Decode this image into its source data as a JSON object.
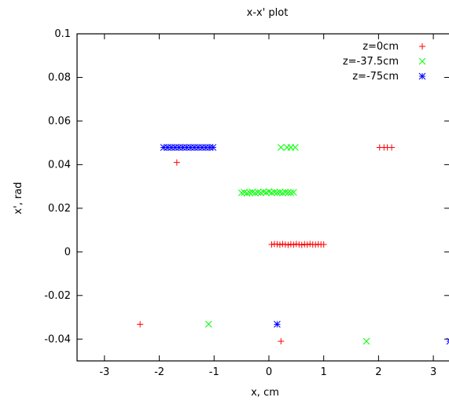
{
  "chart_data": {
    "type": "scatter",
    "title": "x-x' plot",
    "xlabel": "x, cm",
    "ylabel": "x', rad",
    "xlim": [
      -3.5,
      3.3
    ],
    "ylim": [
      -0.05,
      0.1
    ],
    "x_ticks": [
      -3,
      -2,
      -1,
      0,
      1,
      2,
      3
    ],
    "x_tick_labels": [
      "-3",
      "-2",
      "-1",
      "0",
      "1",
      "2",
      "3"
    ],
    "y_ticks": [
      -0.04,
      -0.02,
      0,
      0.02,
      0.04,
      0.06,
      0.08,
      0.1
    ],
    "y_tick_labels": [
      "-0.04",
      "-0.02",
      "0",
      "0.02",
      "0.04",
      "0.06",
      "0.08",
      "0.1"
    ],
    "grid": false,
    "legend_position": "top-right",
    "series": [
      {
        "name": "z=0cm",
        "color": "#ff0000",
        "marker": "plus",
        "x": [
          0.05,
          0.1,
          0.15,
          0.2,
          0.25,
          0.3,
          0.35,
          0.4,
          0.45,
          0.5,
          0.55,
          0.6,
          0.65,
          0.7,
          0.75,
          0.8,
          0.85,
          0.9,
          0.95,
          1.0,
          -1.68,
          -2.35,
          0.22,
          2.02,
          2.1,
          2.16,
          2.24
        ],
        "y": [
          0.0034,
          0.0036,
          0.0035,
          0.0033,
          0.0036,
          0.0034,
          0.0032,
          0.0035,
          0.0033,
          0.0036,
          0.0034,
          0.0032,
          0.0035,
          0.0033,
          0.0036,
          0.0034,
          0.0033,
          0.0035,
          0.0034,
          0.0034,
          0.041,
          -0.0332,
          -0.041,
          0.0479,
          0.0479,
          0.0479,
          0.0479
        ]
      },
      {
        "name": "z=-37.5cm",
        "color": "#00ff00",
        "marker": "x",
        "x": [
          -0.5,
          -0.45,
          -0.4,
          -0.35,
          -0.3,
          -0.25,
          -0.2,
          -0.15,
          -0.1,
          -0.05,
          0.0,
          0.05,
          0.1,
          0.15,
          0.2,
          0.25,
          0.3,
          0.35,
          0.4,
          0.45,
          -1.1,
          1.78,
          0.22,
          0.33,
          0.4,
          0.48
        ],
        "y": [
          0.0271,
          0.0273,
          0.0269,
          0.0272,
          0.0274,
          0.027,
          0.0273,
          0.0271,
          0.0275,
          0.0272,
          0.0276,
          0.0271,
          0.0274,
          0.0272,
          0.0273,
          0.027,
          0.0274,
          0.0272,
          0.0271,
          0.0273,
          -0.0332,
          -0.041,
          0.0479,
          0.0479,
          0.0479,
          0.0479
        ]
      },
      {
        "name": "z=-75cm",
        "color": "#0000ff",
        "marker": "star",
        "x": [
          -1.92,
          -1.85,
          -1.78,
          -1.71,
          -1.64,
          -1.57,
          -1.5,
          -1.43,
          -1.36,
          -1.29,
          -1.22,
          -1.15,
          -1.08,
          -1.02,
          0.15,
          3.3
        ],
        "y": [
          0.0479,
          0.0479,
          0.0479,
          0.0479,
          0.0479,
          0.0479,
          0.0479,
          0.0479,
          0.0479,
          0.0479,
          0.0479,
          0.0479,
          0.0479,
          0.0479,
          -0.0332,
          -0.041
        ]
      }
    ]
  }
}
